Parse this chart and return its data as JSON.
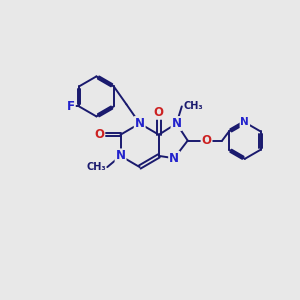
{
  "background_color": "#e8e8e8",
  "bond_color": "#1a1a6e",
  "atom_colors": {
    "N": "#2222cc",
    "O": "#cc2222",
    "F": "#2222cc",
    "C": "#1a1a6e"
  },
  "figsize": [
    3.0,
    3.0
  ],
  "dpi": 100
}
